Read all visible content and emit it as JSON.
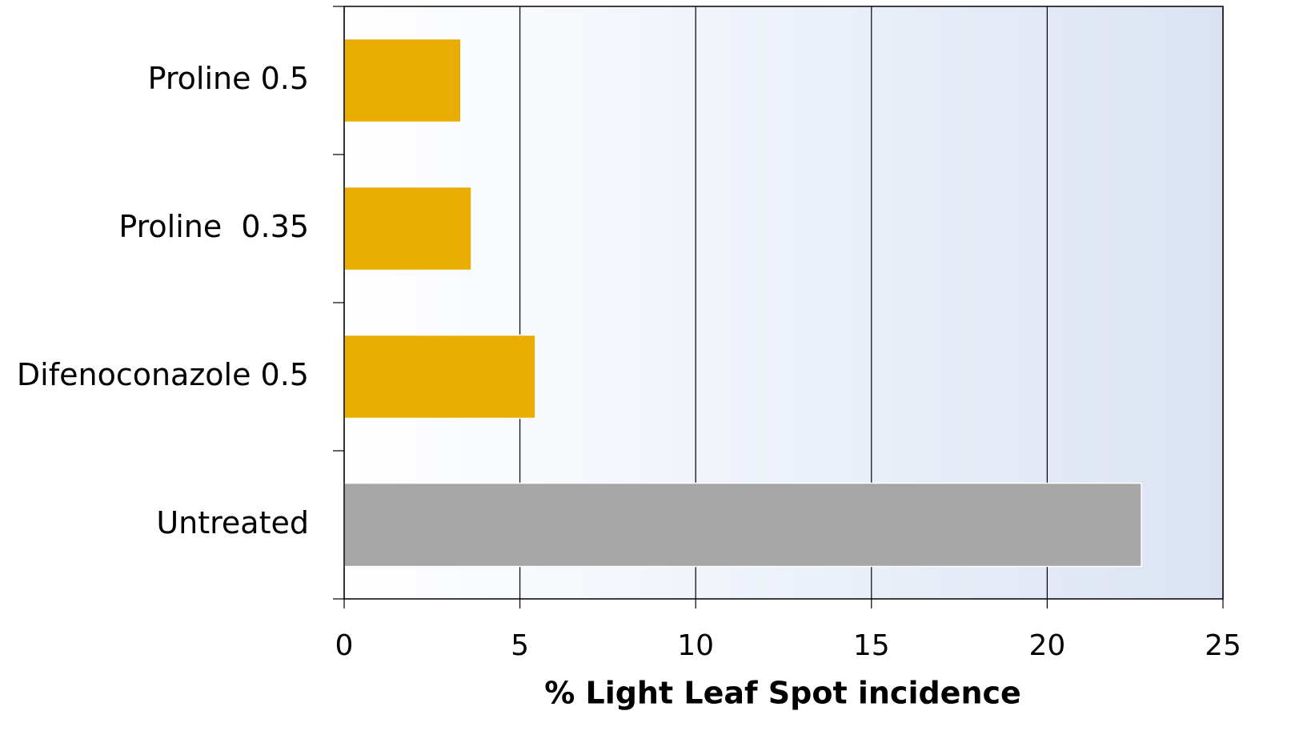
{
  "chart_data": {
    "type": "barh",
    "x_label": "% Light Leaf Spot incidence",
    "categories": [
      "Proline 0.5",
      "Proline  0.35",
      "Difenoconazole 0.5",
      "Untreated"
    ],
    "values": [
      3.32,
      3.62,
      5.44,
      22.68
    ],
    "colors": [
      "#e8ad00",
      "#e8ad00",
      "#e8ad00",
      "#a6a6a6"
    ],
    "xlim": [
      0,
      25
    ],
    "xticks": [
      0,
      5,
      10,
      15,
      20,
      25
    ],
    "grid": true
  }
}
